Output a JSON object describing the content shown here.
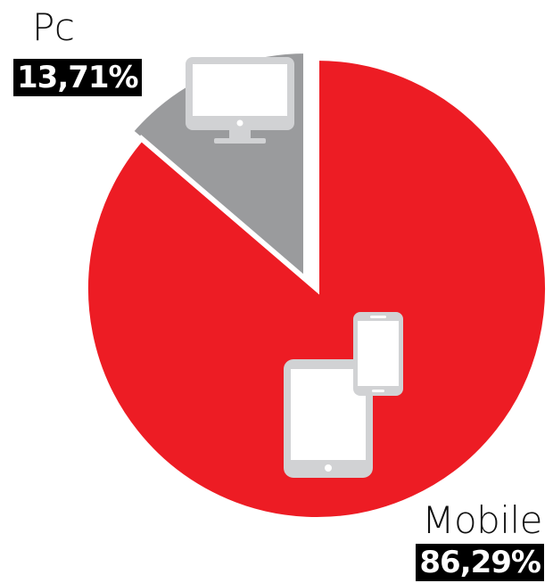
{
  "chart_data": {
    "type": "pie",
    "slices": [
      {
        "label": "Pc",
        "value_label": "13,71%",
        "value": 13.71,
        "color": "#9a9b9d",
        "icon": "desktop-monitor-icon"
      },
      {
        "label": "Mobile",
        "value_label": "86,29%",
        "value": 86.29,
        "color": "#ed1c24",
        "icon": "tablet-and-phone-icon"
      }
    ],
    "start_angle": "12 o'clock",
    "direction": "counterclockwise",
    "exploded_slice": "Pc",
    "legend": "none"
  }
}
